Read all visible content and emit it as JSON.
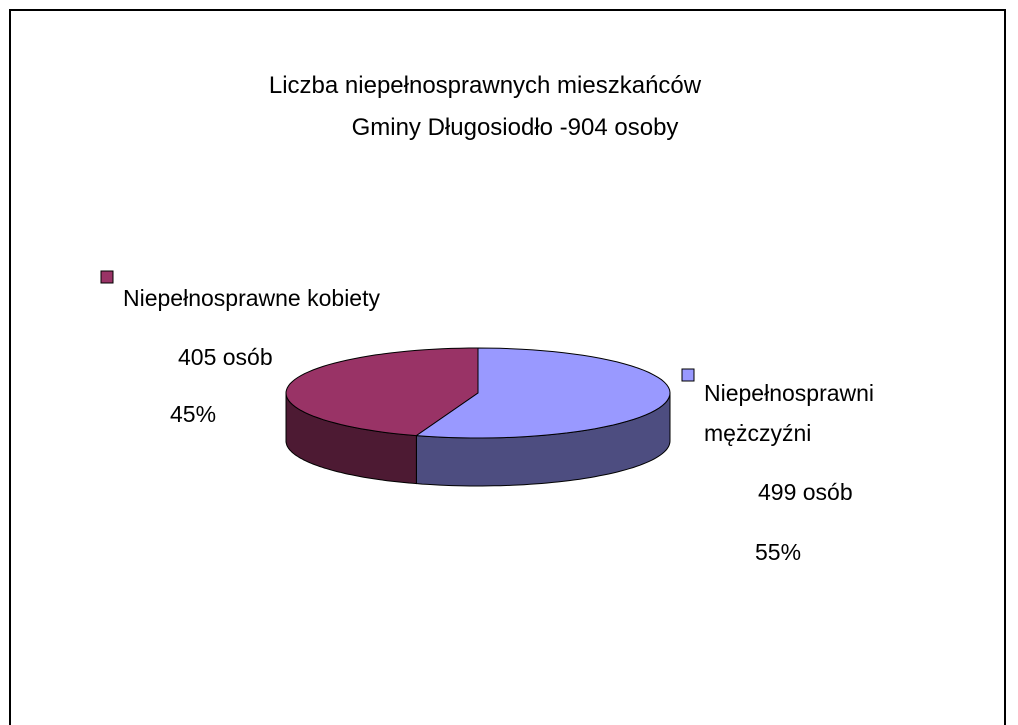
{
  "chart_data": {
    "type": "pie3d",
    "title": [
      "Liczba niepełnosprawnych mieszkańców",
      "Gminy Długosiodło -904 osoby"
    ],
    "categories": [
      "Niepełnosprawne kobiety",
      "Niepełnosprawni mężczyźni"
    ],
    "values": [
      405,
      499
    ],
    "value_labels": [
      "405 osób",
      "499 osób"
    ],
    "percentages": [
      45,
      55
    ],
    "percentage_labels": [
      "45%",
      "55%"
    ],
    "colors": [
      "#993366",
      "#9999ff"
    ],
    "side_colors": [
      "#4d1a33",
      "#4d4d80"
    ]
  }
}
